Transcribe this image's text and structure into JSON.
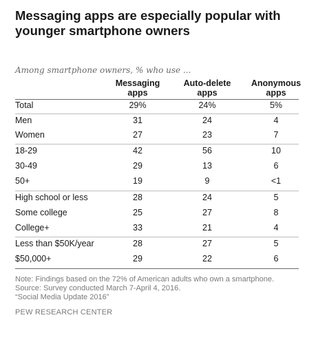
{
  "chart_data": {
    "type": "table",
    "title_lines": [
      "Messaging apps are especially popular with",
      "younger smartphone owners"
    ],
    "subtitle": "Among smartphone owners, % who use ...",
    "columns": [
      {
        "lines": [
          "Messaging",
          "apps"
        ]
      },
      {
        "lines": [
          "Auto-delete",
          "apps"
        ]
      },
      {
        "lines": [
          "Anonymous",
          "apps"
        ]
      }
    ],
    "rows": [
      {
        "label": "Total",
        "values": [
          "29%",
          "24%",
          "5%"
        ]
      },
      {
        "label": "Men",
        "values": [
          "31",
          "24",
          "4"
        ]
      },
      {
        "label": "Women",
        "values": [
          "27",
          "23",
          "7"
        ]
      },
      {
        "label": "18-29",
        "values": [
          "42",
          "56",
          "10"
        ]
      },
      {
        "label": "30-49",
        "values": [
          "29",
          "13",
          "6"
        ]
      },
      {
        "label": "50+",
        "values": [
          "19",
          "9",
          "<1"
        ]
      },
      {
        "label": "High school or less",
        "values": [
          "28",
          "24",
          "5"
        ]
      },
      {
        "label": "Some college",
        "values": [
          "25",
          "27",
          "8"
        ]
      },
      {
        "label": "College+",
        "values": [
          "33",
          "21",
          "4"
        ]
      },
      {
        "label": "Less than $50K/year",
        "values": [
          "28",
          "27",
          "5"
        ]
      },
      {
        "label": "$50,000+",
        "values": [
          "29",
          "22",
          "6"
        ]
      }
    ],
    "notes": [
      "Note: Findings based on the 72% of American adults who own a smartphone.",
      "Source: Survey conducted March 7-April 4, 2016.",
      "“Social Media Update 2016”"
    ],
    "source": "PEW RESEARCH CENTER"
  }
}
